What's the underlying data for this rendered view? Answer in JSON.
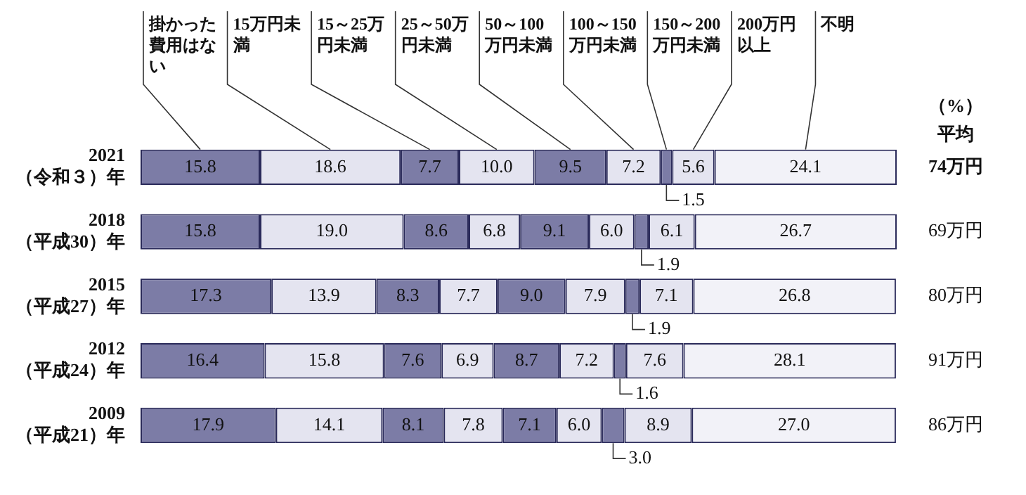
{
  "chart_data": {
    "type": "bar",
    "orientation": "horizontal",
    "stacked": true,
    "legend": false,
    "data_labels": true,
    "categories": [
      "2021\n（令和３）年",
      "2018\n（平成30）年",
      "2015\n（平成27）年",
      "2012\n（平成24）年",
      "2009\n（平成21）年"
    ],
    "series": [
      {
        "name": "掛かった費用はない",
        "color": "#7c7ca6",
        "values": [
          15.8,
          15.8,
          17.3,
          16.4,
          17.9
        ],
        "value_labels": [
          "15.8",
          "15.8",
          "17.3",
          "16.4",
          "17.9"
        ]
      },
      {
        "name": "15万円未満",
        "color": "#e4e4f0",
        "values": [
          18.6,
          19.0,
          13.9,
          15.8,
          14.1
        ],
        "value_labels": [
          "18.6",
          "19.0",
          "13.9",
          "15.8",
          "14.1"
        ]
      },
      {
        "name": "15～25万円未満",
        "color": "#7c7ca6",
        "values": [
          7.7,
          8.6,
          8.3,
          7.6,
          8.1
        ],
        "value_labels": [
          "7.7",
          "8.6",
          "8.3",
          "7.6",
          "8.1"
        ]
      },
      {
        "name": "25～50万円未満",
        "color": "#e4e4f0",
        "values": [
          10.0,
          6.8,
          7.7,
          6.9,
          7.8
        ],
        "value_labels": [
          "10.0",
          "6.8",
          "7.7",
          "6.9",
          "7.8"
        ]
      },
      {
        "name": "50～100万円未満",
        "color": "#7c7ca6",
        "values": [
          9.5,
          9.1,
          9.0,
          8.7,
          7.1
        ],
        "value_labels": [
          "9.5",
          "9.1",
          "9.0",
          "8.7",
          "7.1"
        ]
      },
      {
        "name": "100～150万円未満",
        "color": "#e4e4f0",
        "values": [
          7.2,
          6.0,
          7.9,
          7.2,
          6.0
        ],
        "value_labels": [
          "7.2",
          "6.0",
          "7.9",
          "7.2",
          "6.0"
        ]
      },
      {
        "name": "150～200万円未満",
        "color": "#7c7ca6",
        "values": [
          1.5,
          1.9,
          1.9,
          1.6,
          3.0
        ],
        "value_labels": [
          "1.5",
          "1.9",
          "1.9",
          "1.6",
          "3.0"
        ]
      },
      {
        "name": "200万円以上",
        "color": "#e4e4f0",
        "values": [
          5.6,
          6.1,
          7.1,
          7.6,
          8.9
        ],
        "value_labels": [
          "5.6",
          "6.1",
          "7.1",
          "7.6",
          "8.9"
        ]
      },
      {
        "name": "不明",
        "color": "#f2f2f8",
        "values": [
          24.1,
          26.7,
          26.8,
          28.1,
          27.0
        ],
        "value_labels": [
          "24.1",
          "26.7",
          "26.8",
          "28.1",
          "27.0"
        ]
      }
    ],
    "annotations": [
      "（%）",
      "平均",
      "74万円",
      "69万円",
      "80万円",
      "91万円",
      "86万円"
    ]
  }
}
